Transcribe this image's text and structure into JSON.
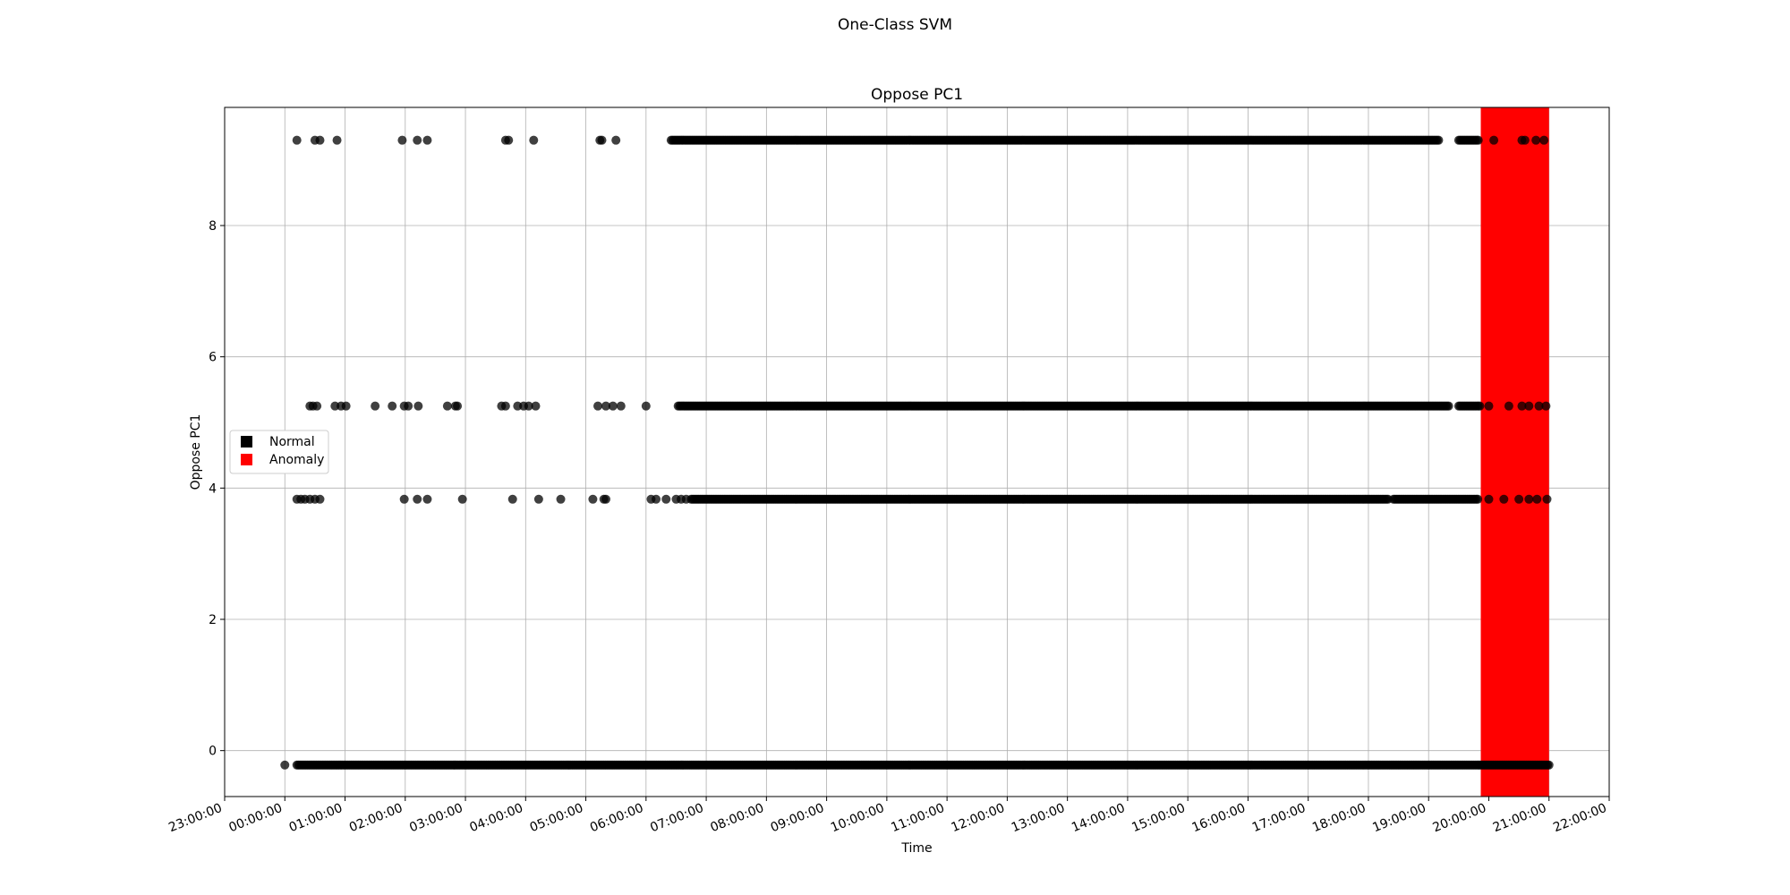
{
  "figure": {
    "suptitle": "One-Class SVM"
  },
  "chart_data": {
    "type": "scatter",
    "title": "Oppose PC1",
    "xlabel": "Time",
    "ylabel": "Oppose PC1",
    "xlim": [
      "23:00:00",
      "22:00:00"
    ],
    "ylim": [
      -0.7,
      9.8
    ],
    "grid": true,
    "legend_placement": "center-left",
    "x_ticks": [
      "23:00:00",
      "00:00:00",
      "01:00:00",
      "02:00:00",
      "03:00:00",
      "04:00:00",
      "05:00:00",
      "06:00:00",
      "07:00:00",
      "08:00:00",
      "09:00:00",
      "10:00:00",
      "11:00:00",
      "12:00:00",
      "13:00:00",
      "14:00:00",
      "15:00:00",
      "16:00:00",
      "17:00:00",
      "18:00:00",
      "19:00:00",
      "20:00:00",
      "21:00:00",
      "22:00:00"
    ],
    "y_ticks": [
      "0",
      "2",
      "4",
      "6",
      "8"
    ],
    "y_tick_values": [
      0,
      2,
      4,
      6,
      8
    ],
    "legend": [
      {
        "label": "Normal",
        "color": "#000000"
      },
      {
        "label": "Anomaly",
        "color": "#ff0000"
      }
    ],
    "anomaly_region": {
      "x": [
        "19:52:00",
        "21:00:00"
      ],
      "color": "#ff0000"
    },
    "series": [
      {
        "name": "Normal",
        "color": "#000000",
        "levels": [
          {
            "y": 9.3,
            "sparse_x": [
              "00:12:00",
              "00:30:00",
              "00:35:00",
              "00:52:00",
              "01:57:00",
              "02:12:00",
              "02:22:00",
              "03:40:00",
              "03:43:00",
              "04:08:00",
              "05:14:00",
              "05:16:00",
              "05:30:00"
            ],
            "dense_segments": [
              [
                "06:25:00",
                "19:10:00"
              ],
              [
                "19:30:00",
                "19:50:00"
              ]
            ],
            "anomaly_x": [
              "20:05:00",
              "20:33:00",
              "20:36:00",
              "20:47:00",
              "20:55:00"
            ]
          },
          {
            "y": 5.25,
            "sparse_x": [
              "00:25:00",
              "00:28:00",
              "00:32:00",
              "00:50:00",
              "00:56:00",
              "01:01:00",
              "01:30:00",
              "01:47:00",
              "01:59:00",
              "02:03:00",
              "02:13:00",
              "02:42:00",
              "02:50:00",
              "02:52:00",
              "03:36:00",
              "03:40:00",
              "03:52:00",
              "03:58:00",
              "04:03:00",
              "04:10:00",
              "05:12:00",
              "05:20:00",
              "05:27:00",
              "05:35:00",
              "06:00:00"
            ],
            "dense_segments": [
              [
                "06:32:00",
                "19:20:00"
              ],
              [
                "19:30:00",
                "19:52:00"
              ]
            ],
            "anomaly_x": [
              "20:00:00",
              "20:20:00",
              "20:33:00",
              "20:40:00",
              "20:50:00",
              "20:57:00"
            ]
          },
          {
            "y": 3.83,
            "sparse_x": [
              "00:12:00",
              "00:16:00",
              "00:20:00",
              "00:25:00",
              "00:30:00",
              "00:35:00",
              "01:59:00",
              "02:12:00",
              "02:22:00",
              "02:57:00",
              "03:47:00",
              "04:13:00",
              "04:35:00",
              "05:07:00",
              "05:18:00",
              "05:20:00",
              "06:05:00",
              "06:10:00",
              "06:20:00",
              "06:30:00",
              "06:35:00",
              "06:40:00"
            ],
            "dense_segments": [
              [
                "06:45:00",
                "18:20:00"
              ],
              [
                "18:25:00",
                "19:50:00"
              ]
            ],
            "anomaly_x": [
              "20:00:00",
              "20:15:00",
              "20:30:00",
              "20:40:00",
              "20:48:00",
              "20:58:00"
            ]
          },
          {
            "y": -0.22,
            "sparse_x": [
              "00:00:00"
            ],
            "dense_segments": [
              [
                "00:12:00",
                "21:00:00"
              ]
            ],
            "anomaly_x": []
          }
        ]
      },
      {
        "name": "Anomaly",
        "color": "#ff0000",
        "region": [
          "19:52:00",
          "21:00:00"
        ]
      }
    ]
  }
}
